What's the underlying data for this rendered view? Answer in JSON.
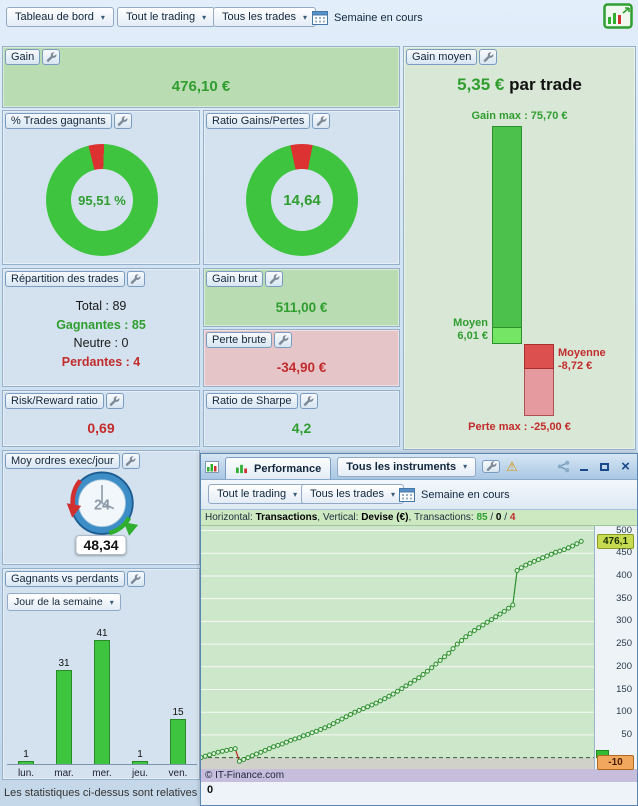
{
  "colors": {
    "accent_green": "#2f9e2f",
    "accent_red": "#c22c2c",
    "panel_green_bg": "#b9dcb2",
    "panel_pink_bg": "#e6c5c9",
    "info_bar_bg": "#cde9c2",
    "chart_bg": "#cde7ca",
    "lavender_strip": "#c7bedd",
    "badge_current_bg": "#c6da52",
    "badge_low_bg": "#f2a75e",
    "donut_green": "#3ec43e",
    "donut_red": "#dc3232"
  },
  "topbar": {
    "dashboard_dropdown": "Tableau de bord",
    "trading_filter": "Tout le trading",
    "trades_filter": "Tous les trades",
    "period_label": "Semaine en cours"
  },
  "panels": {
    "gain": {
      "title": "Gain",
      "value": "476,10 €"
    },
    "win_rate": {
      "title": "% Trades gagnants"
    },
    "gain_loss_ratio": {
      "title": "Ratio Gains/Pertes"
    },
    "repartition": {
      "title": "Répartition des trades",
      "rows": [
        {
          "text": "Total : 89",
          "cls": "neutral"
        },
        {
          "text": "Gagnantes : 85",
          "cls": "win"
        },
        {
          "text": "Neutre : 0",
          "cls": "neutral"
        },
        {
          "text": "Perdantes : 4",
          "cls": "loss"
        }
      ]
    },
    "gain_brut": {
      "title": "Gain brut",
      "value": "511,00 €"
    },
    "perte_brute": {
      "title": "Perte brute",
      "value": "-34,90 €"
    },
    "risk_reward": {
      "title": "Risk/Reward ratio",
      "value": "0,69"
    },
    "sharpe": {
      "title": "Ratio de Sharpe",
      "value": "4,2"
    },
    "avg_orders": {
      "title": "Moy ordres exec/jour",
      "gauge_label": "24",
      "value": "48,34"
    },
    "win_loss_by_day": {
      "title": "Gagnants vs perdants",
      "filter": "Jour de la semaine"
    },
    "gain_moyen": {
      "title": "Gain moyen",
      "value": "5,35 €",
      "value_suffix": " par trade",
      "gain_max_label": "Gain max : 75,70 €",
      "moyen_line1": "Moyen",
      "moyen_line2": "6,01 €",
      "moyenne_line1": "Moyenne",
      "moyenne_line2": "-8,72 €",
      "perte_max_label": "Perte max : -25,00 €"
    }
  },
  "footer_note": "Les statistiques ci-dessus sont relatives",
  "perf_window": {
    "tab": "Performance",
    "instruments_dropdown": "Tous les instruments",
    "trading_filter": "Tout le trading",
    "trades_filter": "Tous les trades",
    "period_label": "Semaine en cours",
    "info_segments": [
      {
        "text": "Horizontal: ",
        "cls": "lab"
      },
      {
        "text": "Transactions",
        "cls": "val"
      },
      {
        "text": ", ",
        "cls": "lab"
      },
      {
        "text": "Vertical: ",
        "cls": "lab"
      },
      {
        "text": "Devise (€)",
        "cls": "val"
      },
      {
        "text": ", ",
        "cls": "lab"
      },
      {
        "text": "Transactions: ",
        "cls": "lab"
      },
      {
        "text": "85",
        "cls": "win"
      },
      {
        "text": " / ",
        "cls": "lab"
      },
      {
        "text": "0",
        "cls": "val"
      },
      {
        "text": " / ",
        "cls": "lab"
      },
      {
        "text": "4",
        "cls": "loss"
      }
    ],
    "copyright": "© IT-Finance.com",
    "x_origin_label": "0",
    "current_badge": "476,1",
    "low_badge": "-10"
  },
  "chart_data": [
    {
      "id": "win_rate_donut",
      "type": "pie",
      "title": "% Trades gagnants",
      "labels": [
        "Gagnants",
        "Perdants"
      ],
      "values": [
        95.51,
        4.49
      ],
      "colors": [
        "#3ec43e",
        "#dc3232"
      ],
      "center_label": "95,51 %",
      "start_deg": -14
    },
    {
      "id": "gain_loss_donut",
      "type": "pie",
      "title": "Ratio Gains/Pertes",
      "labels": [
        "Gains",
        "Pertes"
      ],
      "values": [
        14.64,
        1
      ],
      "colors": [
        "#3ec43e",
        "#dc3232"
      ],
      "center_label": "14,64",
      "start_deg": -12
    },
    {
      "id": "by_day",
      "type": "bar",
      "title": "Gagnants vs perdants — Jour de la semaine",
      "categories": [
        "lun.",
        "mar.",
        "mer.",
        "jeu.",
        "ven."
      ],
      "values": [
        1,
        31,
        41,
        1,
        15
      ],
      "bar_color": "#3ec43e"
    },
    {
      "id": "avg_gain",
      "type": "bar",
      "title": "Gain moyen (€ par trade)",
      "items": [
        {
          "key": "gain_max",
          "label": "Gain max",
          "value": 75.7
        },
        {
          "key": "moyen",
          "label": "Moyen",
          "value": 6.01
        },
        {
          "key": "moyenne",
          "label": "Moyenne",
          "value": -8.72
        },
        {
          "key": "perte_max",
          "label": "Perte max",
          "value": -25.0
        }
      ]
    },
    {
      "id": "equity",
      "type": "line",
      "title": "Performance",
      "xlabel": "Transactions",
      "ylabel": "Devise (€)",
      "xlim": [
        0,
        92
      ],
      "ylim": [
        -25,
        510
      ],
      "yticks": [
        500,
        450,
        400,
        350,
        300,
        250,
        200,
        150,
        100,
        50
      ],
      "final_value": 476.1,
      "values": [
        0,
        3,
        6,
        9,
        12,
        14,
        16,
        18,
        20,
        -8,
        -4,
        0,
        4,
        8,
        12,
        16,
        20,
        24,
        27,
        30,
        34,
        38,
        41,
        44,
        48,
        51,
        55,
        58,
        62,
        66,
        70,
        75,
        80,
        85,
        90,
        95,
        100,
        104,
        108,
        112,
        116,
        120,
        125,
        130,
        135,
        140,
        146,
        152,
        158,
        164,
        170,
        176,
        183,
        190,
        198,
        206,
        214,
        222,
        230,
        240,
        250,
        258,
        266,
        273,
        280,
        286,
        292,
        298,
        304,
        310,
        316,
        322,
        329,
        336,
        412,
        418,
        424,
        428,
        432,
        436,
        440,
        444,
        448,
        452,
        455,
        458,
        462,
        466,
        471,
        476.1
      ]
    }
  ]
}
